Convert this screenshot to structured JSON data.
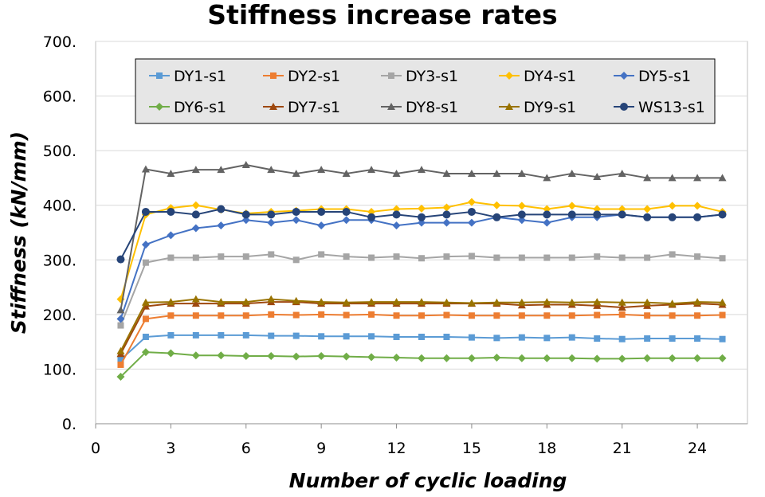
{
  "chart_data": {
    "type": "line",
    "title": "Stiffness increase rates",
    "xlabel": "Number of cyclic loading",
    "ylabel": "Stiffness (kN/mm)",
    "xlim": [
      0,
      26
    ],
    "ylim": [
      0,
      700
    ],
    "xticks": [
      0,
      3,
      6,
      9,
      12,
      15,
      18,
      21,
      24
    ],
    "xtick_labels": [
      "0",
      "3",
      "6",
      "9",
      "12",
      "15",
      "18",
      "21",
      "24"
    ],
    "yticks": [
      0,
      100,
      200,
      300,
      400,
      500,
      600,
      700
    ],
    "ytick_labels": [
      "0.",
      "100.",
      "200.",
      "300.",
      "400.",
      "500.",
      "600.",
      "700."
    ],
    "grid": "horizontal",
    "legend_position": "top",
    "x": [
      1,
      2,
      3,
      4,
      5,
      6,
      7,
      8,
      9,
      10,
      11,
      12,
      13,
      14,
      15,
      16,
      17,
      18,
      19,
      20,
      21,
      22,
      23,
      24,
      25
    ],
    "series": [
      {
        "name": "DY1-s1",
        "color": "#5B9BD5",
        "marker": "square",
        "values": [
          117,
          159,
          162,
          162,
          162,
          162,
          161,
          161,
          160,
          160,
          160,
          159,
          159,
          159,
          158,
          157,
          158,
          157,
          158,
          156,
          155,
          156,
          156,
          156,
          155
        ]
      },
      {
        "name": "DY2-s1",
        "color": "#ED7D31",
        "marker": "square",
        "values": [
          108,
          192,
          198,
          198,
          198,
          198,
          200,
          199,
          200,
          199,
          200,
          198,
          198,
          199,
          198,
          198,
          198,
          198,
          198,
          199,
          200,
          198,
          198,
          198,
          199
        ]
      },
      {
        "name": "DY3-s1",
        "color": "#A5A5A5",
        "marker": "square",
        "values": [
          180,
          295,
          304,
          304,
          306,
          306,
          310,
          300,
          310,
          306,
          304,
          306,
          303,
          306,
          307,
          304,
          304,
          304,
          304,
          306,
          304,
          304,
          310,
          306,
          303
        ]
      },
      {
        "name": "DY4-s1",
        "color": "#FFC000",
        "marker": "diamond",
        "values": [
          228,
          383,
          395,
          400,
          392,
          385,
          388,
          390,
          393,
          393,
          388,
          393,
          394,
          396,
          406,
          400,
          399,
          393,
          399,
          393,
          393,
          393,
          399,
          399,
          388
        ]
      },
      {
        "name": "DY5-s1",
        "color": "#4472C4",
        "marker": "diamond",
        "values": [
          192,
          328,
          345,
          358,
          363,
          373,
          368,
          373,
          363,
          373,
          373,
          363,
          368,
          368,
          368,
          378,
          373,
          368,
          378,
          378,
          383,
          378,
          378,
          378,
          383
        ]
      },
      {
        "name": "DY6-s1",
        "color": "#70AD47",
        "marker": "diamond",
        "values": [
          86,
          131,
          129,
          125,
          125,
          124,
          124,
          123,
          124,
          123,
          122,
          121,
          120,
          120,
          120,
          121,
          120,
          120,
          120,
          119,
          119,
          120,
          120,
          120,
          120
        ]
      },
      {
        "name": "DY7-s1",
        "color": "#9E480E",
        "marker": "triangle",
        "values": [
          128,
          215,
          220,
          220,
          220,
          220,
          223,
          223,
          220,
          220,
          220,
          220,
          220,
          220,
          220,
          220,
          217,
          218,
          218,
          216,
          213,
          216,
          218,
          220,
          218
        ]
      },
      {
        "name": "DY8-s1",
        "color": "#636363",
        "marker": "triangle",
        "values": [
          208,
          466,
          458,
          465,
          465,
          474,
          465,
          458,
          465,
          458,
          465,
          458,
          465,
          458,
          458,
          458,
          458,
          450,
          458,
          452,
          458,
          450,
          450,
          450,
          450
        ]
      },
      {
        "name": "DY9-s1",
        "color": "#997300",
        "marker": "triangle",
        "values": [
          133,
          222,
          223,
          228,
          223,
          223,
          228,
          225,
          223,
          222,
          223,
          223,
          223,
          222,
          221,
          222,
          222,
          223,
          222,
          223,
          222,
          222,
          220,
          223,
          222
        ]
      },
      {
        "name": "WS13-s1",
        "color": "#264478",
        "marker": "circle",
        "values": [
          301,
          388,
          388,
          383,
          393,
          383,
          383,
          388,
          388,
          388,
          378,
          383,
          378,
          383,
          388,
          378,
          383,
          383,
          383,
          383,
          383,
          378,
          378,
          378,
          383
        ]
      }
    ]
  }
}
